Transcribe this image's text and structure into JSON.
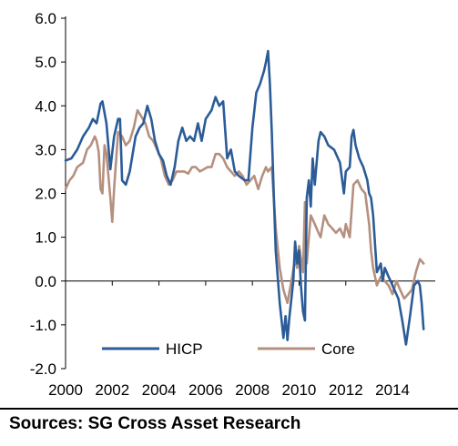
{
  "source_note": "Sources: SG Cross Asset Research",
  "chart_data": {
    "type": "line",
    "title": "",
    "xlabel": "",
    "ylabel": "",
    "xlim": [
      2000,
      2015.83
    ],
    "ylim": [
      -2.0,
      6.0
    ],
    "x_ticks": [
      "2000",
      "2002",
      "2004",
      "2006",
      "2008",
      "2010",
      "2012",
      "2014"
    ],
    "y_ticks": [
      "6.0",
      "5.0",
      "4.0",
      "3.0",
      "2.0",
      "1.0",
      "0.0",
      "-1.0",
      "-2.0"
    ],
    "grid": false,
    "legend_position": "bottom",
    "colors": {
      "HICP": "#2b5c97",
      "Core": "#b5907f"
    },
    "series": [
      {
        "name": "HICP",
        "points": [
          [
            2000.0,
            2.75
          ],
          [
            2000.25,
            2.8
          ],
          [
            2000.5,
            3.0
          ],
          [
            2000.75,
            3.3
          ],
          [
            2001.0,
            3.5
          ],
          [
            2001.17,
            3.7
          ],
          [
            2001.33,
            3.6
          ],
          [
            2001.5,
            4.05
          ],
          [
            2001.58,
            4.1
          ],
          [
            2001.75,
            3.6
          ],
          [
            2001.92,
            2.55
          ],
          [
            2002.08,
            3.3
          ],
          [
            2002.25,
            3.7
          ],
          [
            2002.33,
            3.7
          ],
          [
            2002.42,
            2.3
          ],
          [
            2002.58,
            2.2
          ],
          [
            2002.75,
            2.5
          ],
          [
            2003.0,
            3.3
          ],
          [
            2003.17,
            3.5
          ],
          [
            2003.33,
            3.6
          ],
          [
            2003.5,
            4.0
          ],
          [
            2003.67,
            3.7
          ],
          [
            2003.83,
            3.2
          ],
          [
            2004.0,
            2.9
          ],
          [
            2004.17,
            2.75
          ],
          [
            2004.33,
            2.4
          ],
          [
            2004.5,
            2.2
          ],
          [
            2004.67,
            2.6
          ],
          [
            2004.83,
            3.2
          ],
          [
            2005.0,
            3.5
          ],
          [
            2005.17,
            3.2
          ],
          [
            2005.33,
            3.3
          ],
          [
            2005.5,
            3.2
          ],
          [
            2005.67,
            3.6
          ],
          [
            2005.83,
            3.2
          ],
          [
            2006.0,
            3.7
          ],
          [
            2006.25,
            3.9
          ],
          [
            2006.42,
            4.2
          ],
          [
            2006.58,
            4.0
          ],
          [
            2006.75,
            4.1
          ],
          [
            2006.92,
            2.8
          ],
          [
            2007.08,
            3.0
          ],
          [
            2007.25,
            2.5
          ],
          [
            2007.42,
            2.4
          ],
          [
            2007.67,
            2.3
          ],
          [
            2007.83,
            2.3
          ],
          [
            2008.0,
            3.5
          ],
          [
            2008.17,
            4.3
          ],
          [
            2008.33,
            4.5
          ],
          [
            2008.5,
            4.8
          ],
          [
            2008.58,
            5.0
          ],
          [
            2008.67,
            5.25
          ],
          [
            2008.75,
            4.5
          ],
          [
            2008.83,
            3.4
          ],
          [
            2008.92,
            1.9
          ],
          [
            2009.0,
            0.7
          ],
          [
            2009.17,
            -0.5
          ],
          [
            2009.33,
            -1.3
          ],
          [
            2009.42,
            -0.8
          ],
          [
            2009.5,
            -1.35
          ],
          [
            2009.58,
            -0.85
          ],
          [
            2009.75,
            0.0
          ],
          [
            2009.83,
            0.9
          ],
          [
            2009.92,
            0.4
          ],
          [
            2010.0,
            0.7
          ],
          [
            2010.08,
            -0.1
          ],
          [
            2010.17,
            -0.7
          ],
          [
            2010.25,
            -0.9
          ],
          [
            2010.33,
            1.9
          ],
          [
            2010.42,
            2.3
          ],
          [
            2010.5,
            1.7
          ],
          [
            2010.58,
            2.8
          ],
          [
            2010.67,
            2.2
          ],
          [
            2010.83,
            3.2
          ],
          [
            2010.92,
            3.4
          ],
          [
            2011.08,
            3.3
          ],
          [
            2011.25,
            3.1
          ],
          [
            2011.5,
            3.0
          ],
          [
            2011.75,
            2.7
          ],
          [
            2011.92,
            2.0
          ],
          [
            2012.0,
            2.5
          ],
          [
            2012.17,
            2.6
          ],
          [
            2012.25,
            3.3
          ],
          [
            2012.33,
            3.45
          ],
          [
            2012.42,
            3.1
          ],
          [
            2012.58,
            2.8
          ],
          [
            2012.75,
            2.6
          ],
          [
            2012.92,
            2.3
          ],
          [
            2013.0,
            2.0
          ],
          [
            2013.08,
            1.9
          ],
          [
            2013.17,
            1.5
          ],
          [
            2013.33,
            0.2
          ],
          [
            2013.5,
            0.4
          ],
          [
            2013.58,
            0.0
          ],
          [
            2013.67,
            0.3
          ],
          [
            2013.83,
            0.1
          ],
          [
            2013.92,
            0.0
          ],
          [
            2014.08,
            -0.2
          ],
          [
            2014.25,
            -0.4
          ],
          [
            2014.42,
            -0.9
          ],
          [
            2014.58,
            -1.45
          ],
          [
            2014.75,
            -0.8
          ],
          [
            2014.92,
            -0.1
          ],
          [
            2015.08,
            0.0
          ],
          [
            2015.17,
            -0.1
          ],
          [
            2015.25,
            -0.5
          ],
          [
            2015.33,
            -1.1
          ]
        ]
      },
      {
        "name": "Core",
        "points": [
          [
            2000.0,
            2.1
          ],
          [
            2000.17,
            2.3
          ],
          [
            2000.33,
            2.4
          ],
          [
            2000.5,
            2.6
          ],
          [
            2000.75,
            2.7
          ],
          [
            2000.92,
            3.0
          ],
          [
            2001.08,
            3.1
          ],
          [
            2001.25,
            3.3
          ],
          [
            2001.33,
            3.2
          ],
          [
            2001.42,
            2.95
          ],
          [
            2001.5,
            2.1
          ],
          [
            2001.58,
            2.0
          ],
          [
            2001.67,
            3.1
          ],
          [
            2001.75,
            2.9
          ],
          [
            2001.92,
            1.9
          ],
          [
            2002.0,
            1.35
          ],
          [
            2002.08,
            2.1
          ],
          [
            2002.25,
            3.4
          ],
          [
            2002.42,
            3.3
          ],
          [
            2002.58,
            3.1
          ],
          [
            2002.75,
            3.2
          ],
          [
            2002.92,
            3.5
          ],
          [
            2003.08,
            3.9
          ],
          [
            2003.25,
            3.75
          ],
          [
            2003.42,
            3.6
          ],
          [
            2003.58,
            3.3
          ],
          [
            2003.75,
            3.2
          ],
          [
            2003.92,
            3.0
          ],
          [
            2004.08,
            2.8
          ],
          [
            2004.25,
            2.4
          ],
          [
            2004.42,
            2.2
          ],
          [
            2004.58,
            2.3
          ],
          [
            2004.75,
            2.5
          ],
          [
            2004.92,
            2.5
          ],
          [
            2005.08,
            2.5
          ],
          [
            2005.25,
            2.45
          ],
          [
            2005.42,
            2.6
          ],
          [
            2005.58,
            2.6
          ],
          [
            2005.75,
            2.5
          ],
          [
            2005.92,
            2.55
          ],
          [
            2006.08,
            2.6
          ],
          [
            2006.25,
            2.6
          ],
          [
            2006.42,
            2.9
          ],
          [
            2006.58,
            2.9
          ],
          [
            2006.75,
            2.8
          ],
          [
            2006.92,
            2.6
          ],
          [
            2007.08,
            2.5
          ],
          [
            2007.25,
            2.4
          ],
          [
            2007.42,
            2.5
          ],
          [
            2007.58,
            2.4
          ],
          [
            2007.75,
            2.2
          ],
          [
            2007.92,
            2.3
          ],
          [
            2008.08,
            2.4
          ],
          [
            2008.25,
            2.1
          ],
          [
            2008.42,
            2.4
          ],
          [
            2008.58,
            2.6
          ],
          [
            2008.67,
            2.5
          ],
          [
            2008.83,
            2.6
          ],
          [
            2009.0,
            1.2
          ],
          [
            2009.17,
            0.3
          ],
          [
            2009.33,
            -0.2
          ],
          [
            2009.5,
            -0.5
          ],
          [
            2009.67,
            0.0
          ],
          [
            2009.83,
            0.5
          ],
          [
            2009.92,
            0.3
          ],
          [
            2010.0,
            0.8
          ],
          [
            2010.17,
            0.2
          ],
          [
            2010.25,
            1.8
          ],
          [
            2010.33,
            0.4
          ],
          [
            2010.42,
            1.0
          ],
          [
            2010.5,
            1.5
          ],
          [
            2010.67,
            1.3
          ],
          [
            2010.83,
            1.1
          ],
          [
            2010.92,
            1.0
          ],
          [
            2011.08,
            1.5
          ],
          [
            2011.25,
            1.3
          ],
          [
            2011.42,
            1.2
          ],
          [
            2011.58,
            1.1
          ],
          [
            2011.75,
            1.2
          ],
          [
            2011.92,
            1.0
          ],
          [
            2012.0,
            1.3
          ],
          [
            2012.17,
            1.0
          ],
          [
            2012.33,
            2.2
          ],
          [
            2012.5,
            2.3
          ],
          [
            2012.67,
            2.1
          ],
          [
            2012.83,
            2.0
          ],
          [
            2013.0,
            1.3
          ],
          [
            2013.08,
            0.7
          ],
          [
            2013.17,
            0.3
          ],
          [
            2013.33,
            -0.1
          ],
          [
            2013.5,
            0.1
          ],
          [
            2013.67,
            0.0
          ],
          [
            2013.83,
            -0.1
          ],
          [
            2014.0,
            -0.3
          ],
          [
            2014.17,
            0.0
          ],
          [
            2014.33,
            -0.2
          ],
          [
            2014.5,
            -0.4
          ],
          [
            2014.67,
            -0.3
          ],
          [
            2014.83,
            -0.2
          ],
          [
            2015.0,
            0.2
          ],
          [
            2015.17,
            0.5
          ],
          [
            2015.33,
            0.4
          ]
        ]
      }
    ]
  }
}
